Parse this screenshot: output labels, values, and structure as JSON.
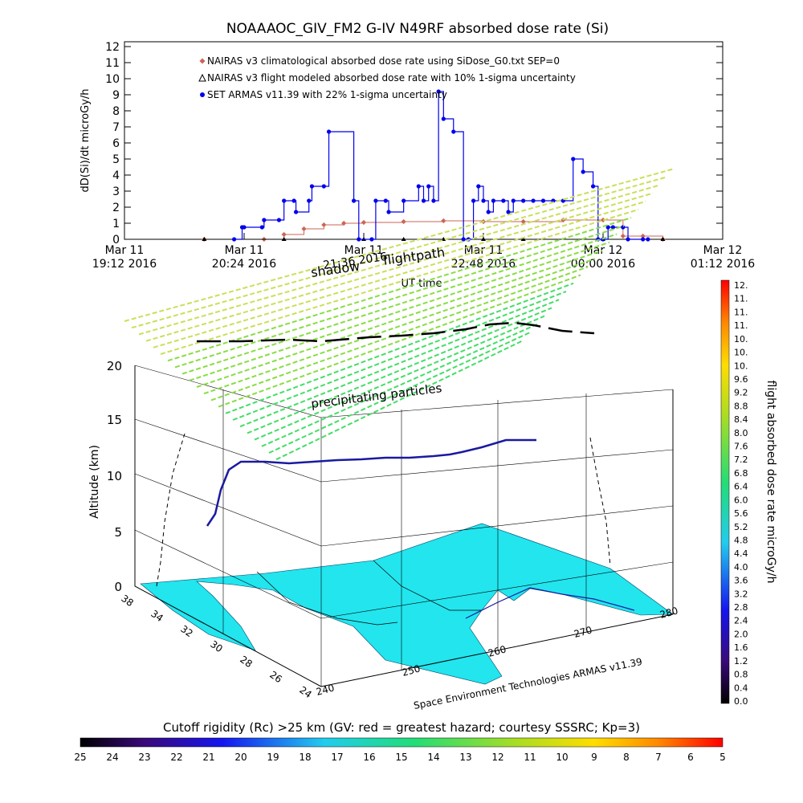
{
  "chart_data": [
    {
      "type": "line",
      "title": "NOAAAOC_GIV_FM2 G-IV    N49RF  absorbed dose rate (Si)",
      "ylabel": "dD(Si)/dt microGy/h",
      "xlabel": "UT time",
      "ylim": [
        0,
        12
      ],
      "yticks": [
        "0",
        "1",
        "2",
        "3",
        "4",
        "5",
        "6",
        "7",
        "8",
        "9",
        "10",
        "11",
        "12"
      ],
      "xlim_hours": [
        0,
        6
      ],
      "xticks": [
        {
          "line1": "Mar 11",
          "line2": "19:12 2016"
        },
        {
          "line1": "Mar 11",
          "line2": "20:24 2016"
        },
        {
          "line1": "Mar 11",
          "line2": "21:36 2016"
        },
        {
          "line1": "Mar 11",
          "line2": "22:48 2016"
        },
        {
          "line1": "Mar 12",
          "line2": "00:00 2016"
        },
        {
          "line1": "Mar 12",
          "line2": "01:12 2016"
        }
      ],
      "legend_position": "top-left",
      "series": [
        {
          "name": "NAIRAS v3 climatological absorbed dose rate using SiDose_G0.txt SEP=0",
          "color": "#cc6655",
          "marker": "diamond",
          "x": [
            0.8,
            1.4,
            1.6,
            1.8,
            2.0,
            2.2,
            2.4,
            2.8,
            3.2,
            3.6,
            4.0,
            4.4,
            4.8,
            5.0,
            5.2,
            5.4
          ],
          "values": [
            0.0,
            0.0,
            0.3,
            0.65,
            0.9,
            1.0,
            1.05,
            1.1,
            1.15,
            1.1,
            1.1,
            1.2,
            1.2,
            0.2,
            0.2,
            0.0
          ]
        },
        {
          "name": "NAIRAS v3 flight modeled absorbed dose rate with 10% 1-sigma uncertainty",
          "color": "#000000",
          "marker": "triangle",
          "x": [
            0.8,
            1.6,
            2.4,
            2.8,
            3.2,
            3.6,
            4.0,
            4.8,
            5.4
          ],
          "values": [
            0.0,
            0.0,
            0.0,
            0.0,
            0.0,
            0.0,
            0.0,
            0.0,
            0.0
          ]
        },
        {
          "name": "SET ARMAS v11.39 with 22% 1-sigma uncertainty",
          "color": "#0000ee",
          "marker": "dot",
          "x": [
            1.1,
            1.18,
            1.2,
            1.38,
            1.4,
            1.55,
            1.6,
            1.7,
            1.72,
            1.85,
            1.88,
            2.0,
            2.05,
            2.3,
            2.35,
            2.48,
            2.52,
            2.62,
            2.65,
            2.8,
            2.95,
            3.0,
            3.05,
            3.1,
            3.15,
            3.2,
            3.3,
            3.4,
            3.45,
            3.5,
            3.55,
            3.6,
            3.65,
            3.7,
            3.8,
            3.85,
            3.9,
            4.0,
            4.1,
            4.2,
            4.3,
            4.4,
            4.5,
            4.6,
            4.7,
            4.75,
            4.8,
            4.85,
            4.9,
            5.0,
            5.05,
            5.2,
            5.25
          ],
          "values": [
            0.0,
            0.75,
            0.75,
            0.75,
            1.2,
            1.2,
            2.4,
            2.4,
            1.7,
            2.4,
            3.3,
            3.3,
            6.7,
            2.4,
            0.0,
            0.0,
            2.4,
            2.4,
            1.7,
            2.4,
            3.3,
            2.4,
            3.3,
            2.4,
            9.2,
            7.5,
            6.7,
            0.0,
            0.0,
            2.4,
            3.3,
            2.4,
            1.7,
            2.4,
            2.4,
            1.7,
            2.4,
            2.4,
            2.4,
            2.4,
            2.4,
            2.4,
            5.0,
            4.2,
            3.3,
            0.0,
            0.0,
            0.75,
            0.75,
            0.75,
            0.0,
            0.0,
            0.0
          ]
        }
      ]
    },
    {
      "type": "scatter",
      "zlabel": "Altitude (km)",
      "zticks": [
        "0",
        "5",
        "10",
        "15",
        "20"
      ],
      "lat_ticks": [
        "38",
        "34",
        "32",
        "30",
        "28",
        "26",
        "24"
      ],
      "lon_ticks": [
        "240",
        "250",
        "260",
        "270",
        "280"
      ],
      "labels": {
        "shadow": "shadow",
        "flightpath": "flightpath",
        "precip": "precipitating particles",
        "date_fragment": "21:36 2016",
        "credit": "Space Environment Technologies ARMAS v11.39"
      },
      "colorbar": {
        "label": "flight absorbed dose rate microGy/h",
        "ticks": [
          "12.",
          "11.",
          "11.",
          "11.",
          "10.",
          "10.",
          "10.",
          "9.6",
          "9.2",
          "8.8",
          "8.4",
          "8.0",
          "7.6",
          "7.2",
          "6.8",
          "6.4",
          "6.0",
          "5.6",
          "5.2",
          "4.8",
          "4.4",
          "4.0",
          "3.6",
          "3.2",
          "2.8",
          "2.4",
          "2.0",
          "1.6",
          "1.2",
          "0.8",
          "0.4",
          "0.0"
        ]
      },
      "colors": {
        "land": "#22e5ee",
        "track": "#1a1aa0",
        "grid": "#000000",
        "precip_lines": "#88dd44"
      }
    },
    {
      "type": "heatmap",
      "title": "Cutoff rigidity (Rc) >25 km (GV: red = greatest hazard; courtesy SSSRC; Kp=3)",
      "ticks": [
        "25",
        "24",
        "23",
        "22",
        "21",
        "20",
        "19",
        "18",
        "17",
        "16",
        "15",
        "14",
        "13",
        "12",
        "11",
        "10",
        "9",
        "8",
        "7",
        "6",
        "5"
      ]
    }
  ]
}
